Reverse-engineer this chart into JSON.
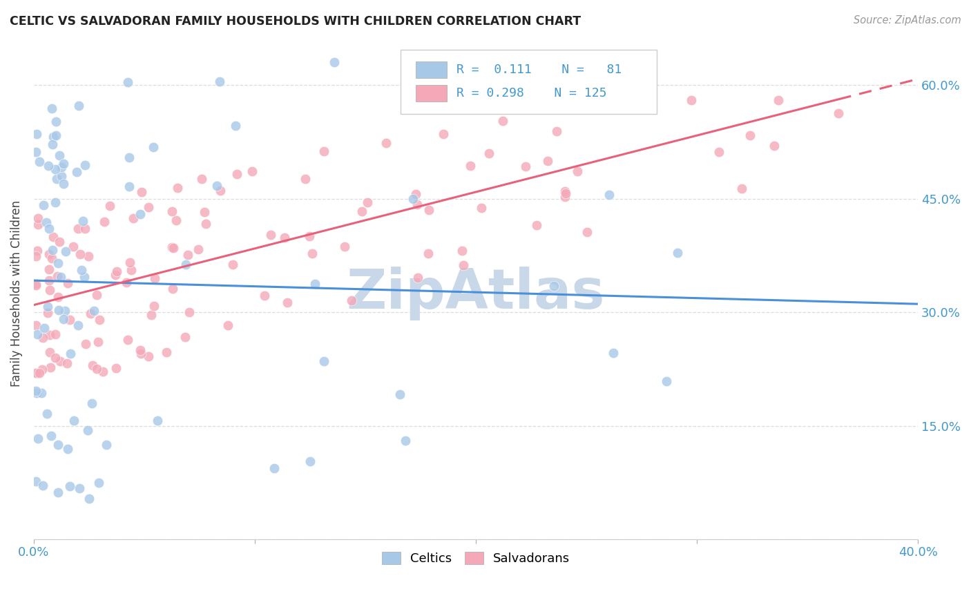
{
  "title": "CELTIC VS SALVADORAN FAMILY HOUSEHOLDS WITH CHILDREN CORRELATION CHART",
  "source": "Source: ZipAtlas.com",
  "ylabel": "Family Households with Children",
  "xlabel_celtics": "Celtics",
  "xlabel_salvadorans": "Salvadorans",
  "x_min": 0.0,
  "x_max": 0.4,
  "y_min": 0.0,
  "y_max": 0.65,
  "R_celtic": 0.111,
  "N_celtic": 81,
  "R_salvadoran": 0.298,
  "N_salvadoran": 125,
  "celtic_color": "#a8c8e8",
  "salvadoran_color": "#f4a8b8",
  "celtic_line_color": "#4a90d9",
  "salvadoran_line_color": "#e8607a",
  "background_color": "#ffffff",
  "watermark_text": "ZipAtlas",
  "watermark_color": "#c8d8e8",
  "grid_color": "#dddddd",
  "tick_color": "#4499cc",
  "title_color": "#222222",
  "source_color": "#999999",
  "ylabel_color": "#444444"
}
